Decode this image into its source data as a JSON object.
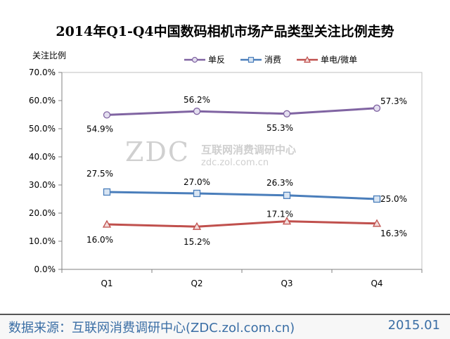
{
  "title": "2014年Q1-Q4中国数码相机市场产品类型关注比例走势",
  "footer": {
    "source": "数据来源：互联网消费调研中心(ZDC.zol.com.cn)",
    "date": "2015.01"
  },
  "watermark": {
    "logo": "ZDC",
    "name": "互联网消费调研中心",
    "url": "zdc.zol.com.cn"
  },
  "chart_data": {
    "type": "line",
    "title": "2014年Q1-Q4中国数码相机市场产品类型关注比例走势",
    "ylabel": "关注比例",
    "xlabel": "",
    "categories": [
      "Q1",
      "Q2",
      "Q3",
      "Q4"
    ],
    "ylim": [
      0,
      70
    ],
    "yticks": [
      "0.0%",
      "10.0%",
      "20.0%",
      "30.0%",
      "40.0%",
      "50.0%",
      "60.0%",
      "70.0%"
    ],
    "grid": false,
    "legend": "top",
    "series": [
      {
        "name": "单反",
        "values": [
          54.9,
          56.2,
          55.3,
          57.3
        ],
        "labels": [
          "54.9%",
          "56.2%",
          "55.3%",
          "57.3%"
        ],
        "color": "#8064a2",
        "marker": "circle"
      },
      {
        "name": "消费",
        "values": [
          27.5,
          27.0,
          26.3,
          25.0
        ],
        "labels": [
          "27.5%",
          "27.0%",
          "26.3%",
          "25.0%"
        ],
        "color": "#4a7ebb",
        "marker": "square"
      },
      {
        "name": "单电/微单",
        "values": [
          16.0,
          15.2,
          17.1,
          16.3
        ],
        "labels": [
          "16.0%",
          "15.2%",
          "17.1%",
          "16.3%"
        ],
        "color": "#c0504d",
        "marker": "triangle"
      }
    ]
  }
}
